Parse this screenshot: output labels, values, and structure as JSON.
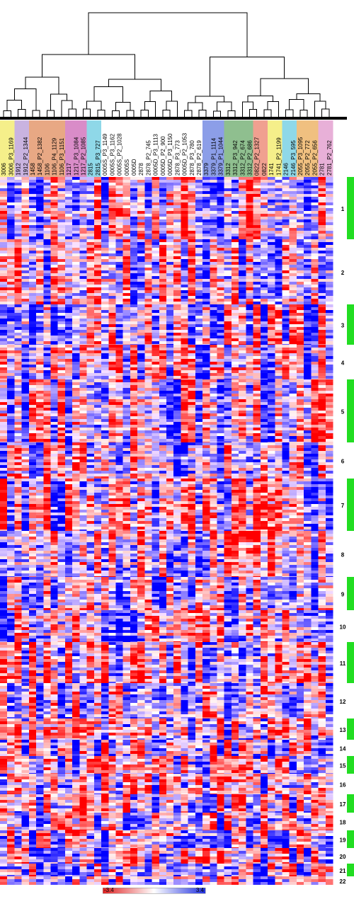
{
  "columns": [
    {
      "label": "3006",
      "group": "#f5ef8a"
    },
    {
      "label": "3006_P3_1169",
      "group": "#f5ef8a"
    },
    {
      "label": "1912",
      "group": "#c9b3e0"
    },
    {
      "label": "1912_P2_1344",
      "group": "#c9b3e0"
    },
    {
      "label": "1458",
      "group": "#e8a884"
    },
    {
      "label": "1458_P2_1382",
      "group": "#e8a884"
    },
    {
      "label": "1106",
      "group": "#e8a884"
    },
    {
      "label": "1106_P4_1129",
      "group": "#e8a884"
    },
    {
      "label": "1106_P3_1151",
      "group": "#e8a884"
    },
    {
      "label": "1217",
      "group": "#d98cc8"
    },
    {
      "label": "1217_P3_1084",
      "group": "#d98cc8"
    },
    {
      "label": "1217_P2_1085",
      "group": "#d98cc8"
    },
    {
      "label": "2815",
      "group": "#8fd8e8"
    },
    {
      "label": "2815_P3_727",
      "group": "#8fd8e8"
    },
    {
      "label": "0005S_P3_1149",
      "group": "#ffffff"
    },
    {
      "label": "0005S_P3_1162",
      "group": "#ffffff"
    },
    {
      "label": "0005S_P2_1028",
      "group": "#ffffff"
    },
    {
      "label": "0005S",
      "group": "#ffffff"
    },
    {
      "label": "0005D",
      "group": "#ffffff"
    },
    {
      "label": "2878",
      "group": "#ffffff"
    },
    {
      "label": "2878_P2_745",
      "group": "#ffffff"
    },
    {
      "label": "0005D_P3_1113",
      "group": "#ffffff"
    },
    {
      "label": "0005D_P2_900",
      "group": "#ffffff"
    },
    {
      "label": "0005D_P3_1150",
      "group": "#ffffff"
    },
    {
      "label": "2878_P3_773",
      "group": "#ffffff"
    },
    {
      "label": "0005D_P2_1053",
      "group": "#ffffff"
    },
    {
      "label": "2878_P3_780",
      "group": "#ffffff"
    },
    {
      "label": "2878_P2_619",
      "group": "#ffffff"
    },
    {
      "label": "3379",
      "group": "#8c9ee8"
    },
    {
      "label": "3379_P1_1114",
      "group": "#8c9ee8"
    },
    {
      "label": "3379_P1_1044",
      "group": "#8c9ee8"
    },
    {
      "label": "3312",
      "group": "#8fbf8f"
    },
    {
      "label": "3312_P3_942",
      "group": "#8fbf8f"
    },
    {
      "label": "3312_P2_674",
      "group": "#8fbf8f"
    },
    {
      "label": "3312_P2_686",
      "group": "#8fbf8f"
    },
    {
      "label": "0822_P2_1327",
      "group": "#f0a090"
    },
    {
      "label": "0822",
      "group": "#f0a090"
    },
    {
      "label": "1741",
      "group": "#f5ef8a"
    },
    {
      "label": "1741_P2_1199",
      "group": "#f5ef8a"
    },
    {
      "label": "2146",
      "group": "#8fd8e8"
    },
    {
      "label": "2146_P3_595",
      "group": "#8fd8e8"
    },
    {
      "label": "2055_P3_1095",
      "group": "#f0c080"
    },
    {
      "label": "2055_P2_772",
      "group": "#f0c080"
    },
    {
      "label": "2055_P2_656",
      "group": "#f0c080"
    },
    {
      "label": "2781",
      "group": "#e8b0d8"
    },
    {
      "label": "2781_P2_762",
      "group": "#e8b0d8"
    }
  ],
  "clusters": [
    "1",
    "2",
    "3",
    "4",
    "5",
    "6",
    "7",
    "8",
    "9",
    "10",
    "11",
    "12",
    "13",
    "14",
    "15",
    "16",
    "17",
    "18",
    "19",
    "20",
    "21",
    "22"
  ],
  "colorbar": {
    "min_label": "-3.4",
    "max_label": "3.4"
  }
}
